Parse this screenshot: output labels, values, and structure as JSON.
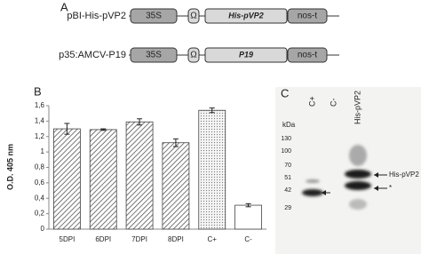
{
  "panel_a": {
    "label": "A",
    "constructs": [
      {
        "name": "pBI-His-pVP2",
        "parts": [
          "35S",
          "Ω",
          "His-pVP2",
          "nos-t"
        ]
      },
      {
        "name": "p35:AMCV-P19",
        "parts": [
          "35S",
          "Ω",
          "P19",
          "nos-t"
        ]
      }
    ]
  },
  "chart_data": {
    "type": "bar",
    "label": "B",
    "y_label": "O.D. 405 nm",
    "categories": [
      "5DPI",
      "6DPI",
      "7DPI",
      "8DPI",
      "C+",
      "C-"
    ],
    "values": [
      1.3,
      1.29,
      1.39,
      1.12,
      1.54,
      0.31
    ],
    "errors": [
      0.07,
      0.01,
      0.04,
      0.05,
      0.03,
      0.02
    ],
    "patterns": [
      "hatch",
      "hatch",
      "hatch",
      "hatch",
      "dots",
      "none"
    ],
    "ylim": [
      0,
      1.6
    ],
    "yticks": [
      0,
      {
        "value": 0.2,
        "label": "0,2"
      },
      {
        "value": 0.4,
        "label": "0,4"
      },
      {
        "value": 0.6,
        "label": "0,6"
      },
      {
        "value": 0.8,
        "label": "0,8"
      },
      {
        "value": 1,
        "label": "1"
      },
      {
        "value": 1.2,
        "label": "1,2"
      },
      {
        "value": 1.4,
        "label": "1,4"
      },
      {
        "value": 1.6,
        "label": "1,6"
      }
    ]
  },
  "panel_c": {
    "label": "C",
    "lanes": [
      "C+",
      "C-",
      "His-pVP2"
    ],
    "unit": "kDa",
    "markers": [
      130,
      100,
      70,
      51,
      42,
      29
    ],
    "arrows": [
      "His-pVP2",
      "*"
    ]
  }
}
